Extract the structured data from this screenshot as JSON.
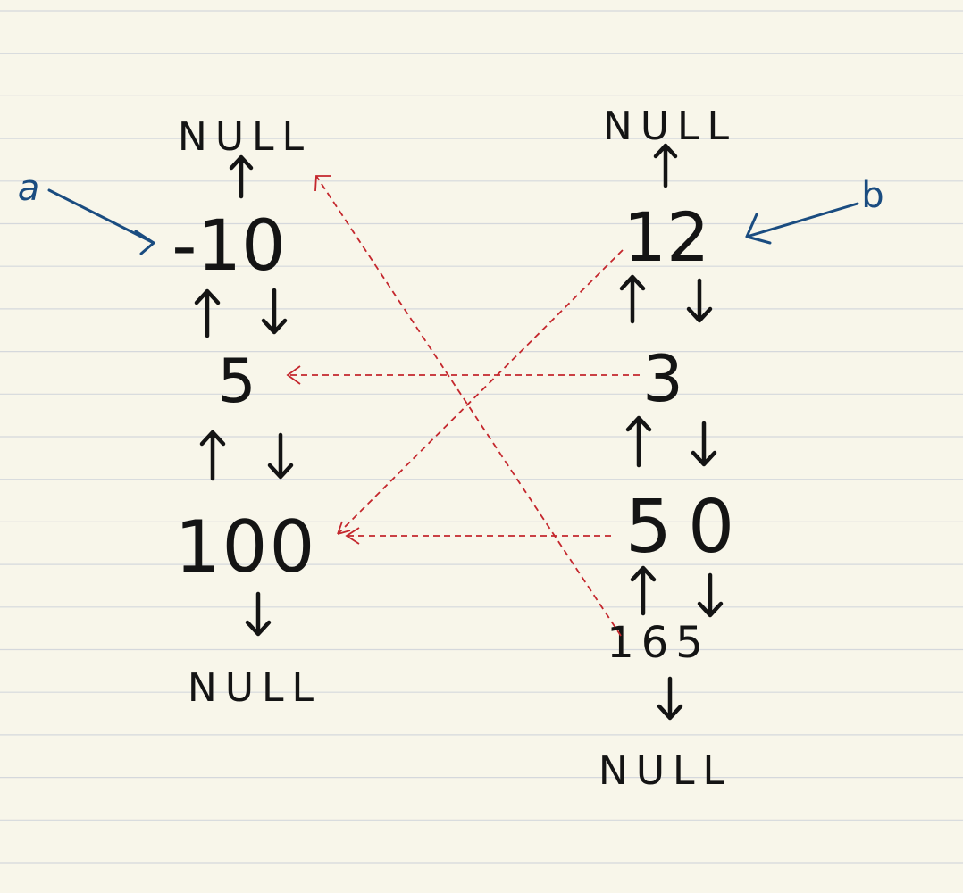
{
  "colors": {
    "paper": "#f8f6ea",
    "rule_line": "#d5d8dc",
    "ink": "#141414",
    "pointer_ink": "#1a4c80",
    "link_ink": "#c4272d"
  },
  "list_a": {
    "pointer_label": "a",
    "top_null": "NULL",
    "bottom_null": "NULL",
    "nodes": [
      "-10",
      "5",
      "100"
    ]
  },
  "list_b": {
    "pointer_label": "b",
    "top_null": "NULL",
    "bottom_null": "NULL",
    "nodes": [
      "12",
      "3",
      "50",
      "165"
    ]
  },
  "cross_links": [
    {
      "from": "12",
      "to": "100"
    },
    {
      "from": "3",
      "to": "5"
    },
    {
      "from": "50",
      "to": "100"
    },
    {
      "from": "165",
      "to": "NULL (top of a)"
    }
  ]
}
